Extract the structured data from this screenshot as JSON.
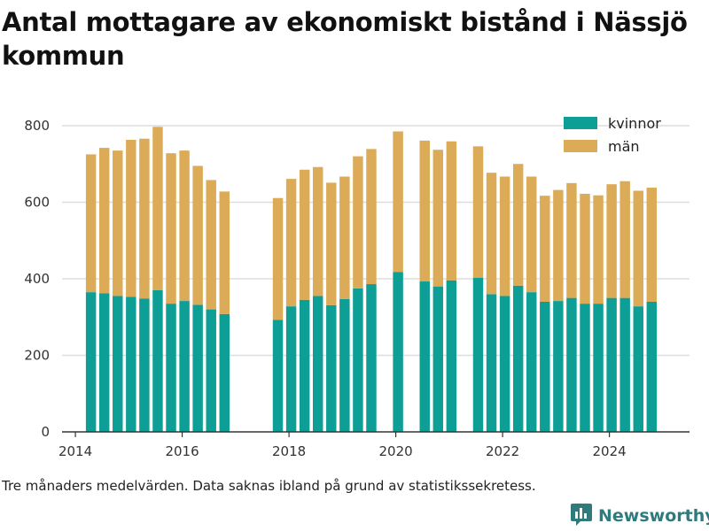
{
  "title": "Antal mottagare av ekonomiskt bistånd i Nässjö kommun",
  "note": "Tre månaders medelvärden. Data saknas ibland på grund av statistikssekretess.",
  "brand": {
    "name": "Newsworthy",
    "logo_icon": "bar-chart-logo-icon"
  },
  "legend": {
    "kvinnor": "kvinnor",
    "man": "män"
  },
  "colors": {
    "kvinnor": "#0d9e96",
    "man": "#dcab57",
    "grid": "#dddddd",
    "axis": "#333333",
    "brand": "#2f7a7c"
  },
  "chart_data": {
    "type": "bar",
    "stacked": true,
    "title": "Antal mottagare av ekonomiskt bistånd i Nässjö kommun",
    "xlabel": "",
    "ylabel": "",
    "xlim": [
      2013.75,
      2025.5
    ],
    "ylim": [
      0,
      800
    ],
    "yticks": [
      0,
      200,
      400,
      600,
      800
    ],
    "xticks": [
      2014,
      2016,
      2018,
      2020,
      2022,
      2024
    ],
    "grid": true,
    "legend_position": "top-right",
    "x": [
      "2014-04",
      "2014-07",
      "2014-10",
      "2015-01",
      "2015-04",
      "2015-07",
      "2015-10",
      "2016-01",
      "2016-04",
      "2016-07",
      "2016-10",
      "2017-10",
      "2018-01",
      "2018-04",
      "2018-07",
      "2018-10",
      "2019-01",
      "2019-04",
      "2019-07",
      "2020-01",
      "2020-07",
      "2020-10",
      "2021-01",
      "2021-07",
      "2021-10",
      "2022-01",
      "2022-04",
      "2022-07",
      "2022-10",
      "2023-01",
      "2023-04",
      "2023-07",
      "2023-10",
      "2024-01",
      "2024-04",
      "2024-07",
      "2024-10"
    ],
    "series": [
      {
        "name": "kvinnor",
        "values": [
          365,
          362,
          355,
          353,
          348,
          370,
          335,
          342,
          332,
          320,
          308,
          293,
          328,
          345,
          355,
          331,
          347,
          375,
          386,
          418,
          393,
          380,
          396,
          403,
          360,
          355,
          382,
          365,
          340,
          342,
          350,
          335,
          335,
          350,
          350,
          328,
          340
        ]
      },
      {
        "name": "män",
        "values": [
          360,
          380,
          380,
          410,
          418,
          427,
          393,
          393,
          363,
          338,
          320,
          318,
          333,
          340,
          337,
          320,
          320,
          345,
          353,
          367,
          368,
          357,
          363,
          343,
          317,
          312,
          318,
          302,
          277,
          290,
          300,
          287,
          283,
          297,
          305,
          302,
          298
        ]
      }
    ]
  }
}
